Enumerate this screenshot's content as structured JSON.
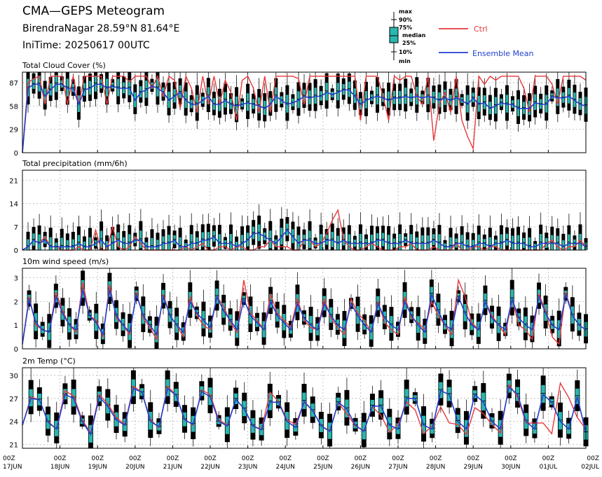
{
  "header": {
    "title": "CMA—GEPS Meteogram",
    "location": "BirendraNagar 28.59°N 81.64°E",
    "init_time": "IniTime: 20250617 00UTC"
  },
  "legend": {
    "box_labels": [
      "max",
      "90%",
      "75%",
      "median",
      "25%",
      "10%",
      "min"
    ],
    "ctrl": "Ctrl",
    "mean": "Ensemble Mean"
  },
  "colors": {
    "ctrl": "#e8383b",
    "mean": "#1f3fcf",
    "box": "#2ab7b0",
    "grid": "#b8b8b8"
  },
  "x_labels": [
    [
      "00Z",
      "17JUN"
    ],
    [
      "00Z",
      "18JUN"
    ],
    [
      "00Z",
      "19JUN"
    ],
    [
      "00Z",
      "20JUN"
    ],
    [
      "00Z",
      "21JUN"
    ],
    [
      "00Z",
      "22JUN"
    ],
    [
      "00Z",
      "23JUN"
    ],
    [
      "00Z",
      "24JUN"
    ],
    [
      "00Z",
      "25JUN"
    ],
    [
      "00Z",
      "26JUN"
    ],
    [
      "00Z",
      "27JUN"
    ],
    [
      "00Z",
      "28JUN"
    ],
    [
      "00Z",
      "29JUN"
    ],
    [
      "00Z",
      "30JUN"
    ],
    [
      "00Z",
      "01JUL"
    ],
    [
      "00Z",
      "02JUL"
    ]
  ],
  "chart_data": [
    {
      "type": "boxplot",
      "title": "Total Cloud Cover (%)",
      "ylim": [
        0,
        100
      ],
      "yticks": [
        0,
        29,
        58,
        87
      ],
      "ctrl": [
        0,
        87,
        92,
        95,
        60,
        95,
        95,
        95,
        60,
        95,
        60,
        95,
        95,
        95,
        95,
        60,
        95,
        95,
        95,
        88,
        95,
        95,
        95,
        80,
        95,
        70,
        95,
        90,
        55,
        95,
        80,
        50,
        95,
        60,
        95,
        60,
        90,
        75,
        40,
        90,
        95,
        80,
        50,
        95,
        50,
        95,
        95,
        95,
        95,
        92,
        60,
        95,
        95,
        95,
        95,
        95,
        95,
        95,
        95,
        95,
        40,
        95,
        95,
        95,
        70,
        40,
        95,
        90,
        95,
        95,
        70,
        60,
        95,
        15,
        60,
        75,
        50,
        95,
        40,
        20,
        5,
        95,
        85,
        95,
        90,
        95,
        95,
        95,
        95,
        80,
        50,
        95,
        95,
        95,
        85,
        60,
        95,
        95,
        95,
        95,
        90
      ],
      "mean": [
        0,
        80,
        85,
        85,
        70,
        78,
        85,
        85,
        80,
        80,
        60,
        78,
        80,
        85,
        85,
        80,
        83,
        80,
        80,
        80,
        65,
        75,
        78,
        83,
        80,
        75,
        65,
        70,
        75,
        65,
        60,
        60,
        65,
        70,
        60,
        60,
        65,
        60,
        58,
        60,
        62,
        60,
        58,
        55,
        60,
        70,
        65,
        60,
        62,
        65,
        70,
        68,
        70,
        70,
        75,
        72,
        75,
        78,
        78,
        70,
        60,
        65,
        68,
        70,
        68,
        65,
        68,
        68,
        70,
        68,
        70,
        68,
        70,
        68,
        65,
        68,
        65,
        68,
        65,
        60,
        68,
        60,
        62,
        55,
        58,
        62,
        60,
        60,
        55,
        55,
        55,
        62,
        60,
        60,
        70,
        68,
        68,
        70,
        65,
        60,
        58
      ]
    },
    {
      "type": "boxplot",
      "title": "Total precipitation (mm/6h)",
      "ylim": [
        0,
        24
      ],
      "yticks": [
        0,
        7,
        14,
        21
      ],
      "ctrl": [
        0,
        1,
        3,
        2,
        4,
        1,
        1,
        0,
        0,
        0,
        1,
        0,
        0,
        6,
        0,
        0,
        7,
        1,
        0,
        1,
        4,
        2,
        0,
        0,
        0,
        0,
        0,
        0,
        0,
        1,
        0,
        1,
        2,
        0,
        0,
        1,
        1,
        0,
        1,
        1,
        0,
        0,
        1,
        1,
        3,
        1,
        1,
        1,
        0,
        0,
        3,
        3,
        1,
        2,
        5,
        9,
        12,
        3,
        1,
        0,
        0,
        1,
        2,
        1,
        0,
        0,
        0,
        1,
        1,
        2,
        0,
        0,
        0,
        1,
        0,
        0,
        0,
        2,
        0,
        0,
        1,
        1,
        0,
        1,
        1,
        0,
        0,
        0,
        0,
        0,
        0,
        0,
        0,
        2,
        3,
        1,
        0,
        1,
        1,
        3,
        1
      ],
      "mean": [
        0,
        1,
        3,
        2,
        3,
        1,
        1,
        1,
        1,
        1,
        2,
        1,
        1,
        2,
        3,
        1,
        2,
        3,
        2,
        2,
        3,
        3,
        1,
        1,
        1,
        2,
        2,
        3,
        1,
        1,
        2,
        2,
        3,
        3,
        4,
        2,
        2,
        2,
        1,
        2,
        3,
        5,
        5,
        4,
        3,
        2,
        4,
        6,
        4,
        2,
        3,
        3,
        2,
        2,
        3,
        3,
        2,
        3,
        2,
        2,
        2,
        2,
        2,
        3,
        3,
        2,
        2,
        2,
        3,
        2,
        2,
        2,
        2,
        3,
        2,
        1,
        1,
        2,
        2,
        1,
        1,
        2,
        2,
        1,
        2,
        2,
        3,
        2,
        2,
        2,
        1,
        1,
        2,
        2,
        2,
        2,
        1,
        2,
        2,
        2,
        1
      ]
    },
    {
      "type": "boxplot",
      "title": "10m wind speed (m/s)",
      "ylim": [
        0,
        3.4
      ],
      "yticks": [
        0,
        1,
        2,
        3
      ],
      "ctrl": [
        0.2,
        2.2,
        1.0,
        0.8,
        0.7,
        2.4,
        1.6,
        1.0,
        0.7,
        2.8,
        1.4,
        1.2,
        0.5,
        2.7,
        1.3,
        1.0,
        0.6,
        2.4,
        1.3,
        0.9,
        0.4,
        2.3,
        1.4,
        1.0,
        0.5,
        2.2,
        1.4,
        1.0,
        0.8,
        2.2,
        1.8,
        1.1,
        0.7,
        2.9,
        1.5,
        1.2,
        0.8,
        2.3,
        1.5,
        1.2,
        0.9,
        2.1,
        1.2,
        0.9,
        0.8,
        2.1,
        1.3,
        0.9,
        0.6,
        2.1,
        1.5,
        1.2,
        0.7,
        2.0,
        1.1,
        0.8,
        0.6,
        2.2,
        1.3,
        1.1,
        0.8,
        2.0,
        1.4,
        1.0,
        0.6,
        2.9,
        2.2,
        1.1,
        0.8,
        2.0,
        1.4,
        1.0,
        0.6,
        2.1,
        1.0,
        0.8,
        0.4,
        2.3,
        1.6,
        0.5,
        0.2,
        2.4,
        1.4,
        1.0,
        0.8
      ],
      "mean": [
        0.2,
        2.1,
        1.1,
        0.8,
        0.7,
        2.2,
        1.5,
        1.0,
        0.8,
        2.5,
        1.4,
        1.1,
        0.6,
        2.5,
        1.4,
        1.0,
        0.7,
        2.3,
        1.4,
        1.0,
        0.6,
        2.2,
        1.4,
        1.0,
        0.7,
        2.0,
        1.5,
        1.2,
        0.9,
        2.2,
        1.6,
        1.2,
        0.8,
        2.1,
        1.4,
        1.1,
        0.8,
        2.0,
        1.4,
        1.1,
        0.8,
        1.9,
        1.3,
        1.0,
        0.8,
        1.9,
        1.4,
        1.0,
        0.8,
        1.9,
        1.4,
        1.0,
        0.7,
        1.9,
        1.3,
        1.0,
        0.8,
        2.0,
        1.4,
        1.0,
        0.7,
        2.3,
        1.6,
        1.0,
        0.8,
        2.2,
        1.5,
        1.0,
        0.8,
        2.0,
        1.3,
        1.0,
        0.8,
        2.1,
        1.3,
        1.0,
        0.8,
        2.2,
        1.5,
        1.0,
        0.8,
        2.3,
        1.4,
        1.0,
        0.8
      ]
    },
    {
      "type": "boxplot",
      "title": "2m Temp (°C)",
      "ylim": [
        20.5,
        31
      ],
      "yticks": [
        21,
        24,
        27,
        30
      ],
      "ctrl": [
        23.5,
        27.2,
        26.8,
        24.0,
        23.0,
        28.0,
        27.3,
        24.2,
        22.5,
        27.5,
        26.3,
        24.5,
        23.6,
        28.6,
        27.8,
        24.2,
        23.2,
        28.6,
        27.4,
        24.3,
        23.5,
        28.1,
        27.5,
        24.2,
        23.5,
        26.9,
        25.6,
        23.4,
        23.0,
        27.8,
        26.6,
        24.2,
        23.6,
        26.5,
        25.4,
        23.4,
        22.8,
        26.4,
        25.0,
        23.4,
        22.8,
        25.9,
        24.8,
        22.6,
        23.6,
        26.5,
        25.5,
        22.4,
        23.4,
        25.9,
        23.8,
        23.6,
        22.3,
        25.8,
        25.0,
        23.6,
        22.5,
        28.8,
        27.2,
        23.8,
        23.8,
        23.8,
        22.4,
        29.0,
        27.1,
        24.5,
        23.0
      ],
      "mean": [
        23.5,
        27.0,
        26.8,
        23.9,
        23.0,
        27.5,
        27.0,
        24.0,
        22.3,
        27.2,
        26.0,
        24.2,
        23.5,
        28.3,
        27.8,
        24.0,
        23.3,
        28.3,
        27.4,
        24.2,
        23.6,
        27.9,
        27.2,
        24.0,
        23.4,
        26.9,
        25.6,
        23.4,
        22.9,
        26.5,
        26.5,
        24.0,
        23.2,
        26.6,
        25.4,
        23.4,
        22.7,
        26.5,
        25.6,
        23.5,
        22.7,
        26.0,
        26.0,
        23.5,
        23.0,
        27.0,
        27.0,
        23.5,
        23.0,
        28.0,
        27.5,
        24.0,
        23.0,
        27.5,
        26.5,
        24.0,
        23.0,
        28.5,
        27.5,
        24.0,
        23.0,
        27.5,
        26.5,
        24.0,
        23.0,
        27.2,
        22.5
      ]
    }
  ]
}
